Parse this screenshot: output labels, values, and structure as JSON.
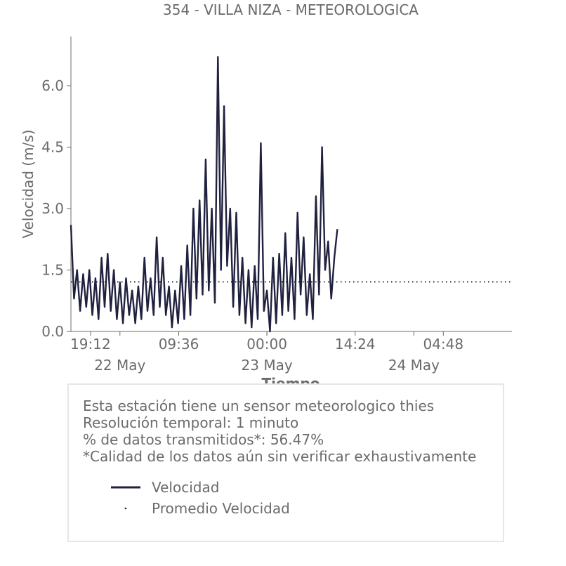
{
  "chart_data": {
    "type": "line",
    "title": "354 - VILLA NIZA - METEOROLOGICA",
    "xlabel": "Tiempo",
    "ylabel": "Velocidad (m/s)",
    "ylim": [
      0,
      7.2
    ],
    "yticks": [
      "0.0",
      "1.5",
      "3.0",
      "4.5",
      "6.0"
    ],
    "xlim": [
      "2021-05-21T16:00",
      "2021-05-24T16:00"
    ],
    "xticks": [
      {
        "t": "2021-05-21T19:12",
        "label": "19:12"
      },
      {
        "t": "2021-05-22T09:36",
        "label": "09:36"
      },
      {
        "t": "2021-05-23T00:00",
        "label": "00:00"
      },
      {
        "t": "2021-05-23T14:24",
        "label": "14:24"
      },
      {
        "t": "2021-05-24T04:48",
        "label": "04:48"
      }
    ],
    "date_labels": [
      {
        "t": "2021-05-22T00:00",
        "label": "22 May"
      },
      {
        "t": "2021-05-23T00:00",
        "label": "23 May"
      },
      {
        "t": "2021-05-24T00:00",
        "label": "24 May"
      }
    ],
    "grid": false,
    "legend_placement": "below",
    "colors": {
      "velocidad": "#20213f",
      "promedio": "#20213f",
      "text": "#6b6b6b",
      "box_border": "#e6e6e6"
    },
    "series": [
      {
        "name": "Velocidad",
        "style": "solid",
        "x": [
          "2021-05-21T16:00",
          "2021-05-21T16:30",
          "2021-05-21T17:00",
          "2021-05-21T17:30",
          "2021-05-21T18:00",
          "2021-05-21T18:30",
          "2021-05-21T19:00",
          "2021-05-21T19:30",
          "2021-05-21T20:00",
          "2021-05-21T20:30",
          "2021-05-21T21:00",
          "2021-05-21T21:30",
          "2021-05-21T22:00",
          "2021-05-21T22:30",
          "2021-05-21T23:00",
          "2021-05-21T23:30",
          "2021-05-22T00:00",
          "2021-05-22T00:30",
          "2021-05-22T01:00",
          "2021-05-22T01:30",
          "2021-05-22T02:00",
          "2021-05-22T02:30",
          "2021-05-22T03:00",
          "2021-05-22T03:30",
          "2021-05-22T04:00",
          "2021-05-22T04:30",
          "2021-05-22T05:00",
          "2021-05-22T05:30",
          "2021-05-22T06:00",
          "2021-05-22T06:30",
          "2021-05-22T07:00",
          "2021-05-22T07:30",
          "2021-05-22T08:00",
          "2021-05-22T08:30",
          "2021-05-22T09:00",
          "2021-05-22T09:30",
          "2021-05-22T10:00",
          "2021-05-22T10:30",
          "2021-05-22T11:00",
          "2021-05-22T11:30",
          "2021-05-22T12:00",
          "2021-05-22T12:30",
          "2021-05-22T13:00",
          "2021-05-22T13:30",
          "2021-05-22T14:00",
          "2021-05-22T14:30",
          "2021-05-22T15:00",
          "2021-05-22T15:30",
          "2021-05-22T16:00",
          "2021-05-22T16:30",
          "2021-05-22T17:00",
          "2021-05-22T17:30",
          "2021-05-22T18:00",
          "2021-05-22T18:30",
          "2021-05-22T19:00",
          "2021-05-22T19:30",
          "2021-05-22T20:00",
          "2021-05-22T20:30",
          "2021-05-22T21:00",
          "2021-05-22T21:30",
          "2021-05-22T22:00",
          "2021-05-22T22:30",
          "2021-05-22T23:00",
          "2021-05-22T23:30",
          "2021-05-23T00:00",
          "2021-05-23T00:30",
          "2021-05-23T01:00",
          "2021-05-23T01:30",
          "2021-05-23T02:00",
          "2021-05-23T02:30",
          "2021-05-23T03:00",
          "2021-05-23T03:30",
          "2021-05-23T04:00",
          "2021-05-23T04:30",
          "2021-05-23T05:00",
          "2021-05-23T05:30",
          "2021-05-23T06:00",
          "2021-05-23T06:30",
          "2021-05-23T07:00",
          "2021-05-23T07:30",
          "2021-05-23T08:00",
          "2021-05-23T08:30",
          "2021-05-23T09:00",
          "2021-05-23T09:30",
          "2021-05-23T10:00",
          "2021-05-23T10:30",
          "2021-05-23T11:00",
          "2021-05-23T11:30"
        ],
        "y": [
          2.6,
          0.8,
          1.5,
          0.5,
          1.4,
          0.6,
          1.5,
          0.4,
          1.3,
          0.3,
          1.8,
          0.6,
          1.9,
          0.5,
          1.5,
          0.3,
          1.2,
          0.2,
          1.3,
          0.4,
          1.0,
          0.2,
          1.1,
          0.3,
          1.8,
          0.5,
          1.3,
          0.4,
          2.3,
          0.6,
          1.8,
          0.4,
          1.1,
          0.1,
          1.0,
          0.2,
          1.6,
          0.3,
          2.1,
          0.4,
          3.0,
          0.8,
          3.2,
          0.9,
          4.2,
          1.0,
          3.0,
          0.7,
          6.7,
          1.5,
          5.5,
          1.6,
          3.0,
          0.6,
          2.9,
          0.4,
          1.8,
          0.2,
          1.5,
          0.1,
          1.6,
          0.3,
          4.6,
          0.5,
          1.0,
          0.0,
          1.8,
          0.2,
          1.9,
          0.4,
          2.4,
          0.5,
          1.8,
          0.3,
          2.9,
          0.9,
          2.3,
          0.4,
          1.4,
          0.3,
          3.3,
          0.9,
          4.5,
          1.5,
          2.2,
          0.8,
          1.8,
          2.5
        ]
      },
      {
        "name": "Promedio Velocidad",
        "style": "dotted",
        "x": [
          "2021-05-21T16:00",
          "2021-05-24T16:00"
        ],
        "y": [
          1.21,
          1.21
        ]
      }
    ]
  },
  "info": {
    "lines": [
      "Esta estación tiene un sensor meteorologico thies",
      "Resolución temporal: 1 minuto",
      "% de datos transmitidos*: 56.47%",
      "*Calidad de los datos aún sin verificar exhaustivamente"
    ]
  }
}
